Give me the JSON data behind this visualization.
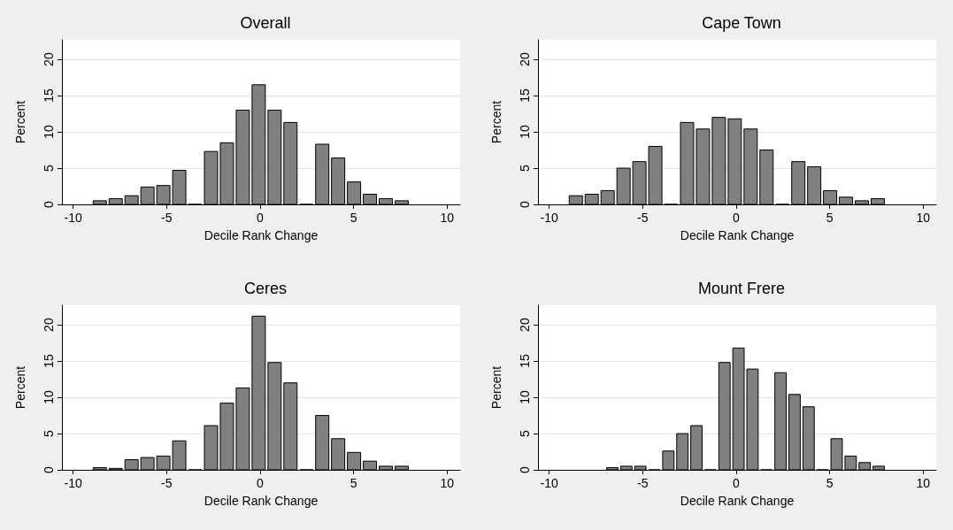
{
  "chart_data": [
    {
      "type": "histogram",
      "title": "Overall",
      "xlabel": "Decile Rank Change",
      "ylabel": "Percent",
      "color": "#808080",
      "bins": [
        -9,
        -8.15,
        -7.3,
        -6.45,
        -5.6,
        -4.75,
        -3.9,
        -3.05,
        -2.2,
        -1.35,
        -0.5,
        0.35,
        1.2,
        2.05,
        2.9,
        3.75,
        4.6,
        5.45,
        6.3,
        7.15,
        8
      ],
      "values": [
        0.5,
        0.8,
        1.2,
        2.4,
        2.6,
        4.7,
        0,
        7.3,
        8.5,
        13.0,
        16.5,
        13.0,
        11.3,
        0,
        8.3,
        6.4,
        3.1,
        1.4,
        0.8,
        0.5
      ],
      "xlim": [
        -10.6,
        10.7
      ],
      "xticks": [
        -10,
        -5,
        0,
        5,
        10
      ],
      "ylim": [
        0,
        22.7
      ],
      "yticks": [
        0,
        5,
        10,
        15,
        20
      ],
      "grid": "y"
    },
    {
      "type": "histogram",
      "title": "Cape Town",
      "xlabel": "Decile Rank Change",
      "ylabel": "Percent",
      "color": "#808080",
      "bins": [
        -9,
        -8.15,
        -7.3,
        -6.45,
        -5.6,
        -4.75,
        -3.9,
        -3.05,
        -2.2,
        -1.35,
        -0.5,
        0.35,
        1.2,
        2.05,
        2.9,
        3.75,
        4.6,
        5.45,
        6.3,
        7.15,
        8
      ],
      "values": [
        1.2,
        1.4,
        1.9,
        5.0,
        5.9,
        8.0,
        0,
        11.3,
        10.4,
        12.0,
        11.8,
        10.4,
        7.5,
        0,
        5.9,
        5.2,
        1.9,
        1.0,
        0.5,
        0.8
      ],
      "xlim": [
        -10.6,
        10.7
      ],
      "xticks": [
        -10,
        -5,
        0,
        5,
        10
      ],
      "ylim": [
        0,
        22.7
      ],
      "yticks": [
        0,
        5,
        10,
        15,
        20
      ],
      "grid": "y"
    },
    {
      "type": "histogram",
      "title": "Ceres",
      "xlabel": "Decile Rank Change",
      "ylabel": "Percent",
      "color": "#808080",
      "bins": [
        -9,
        -8.15,
        -7.3,
        -6.45,
        -5.6,
        -4.75,
        -3.9,
        -3.05,
        -2.2,
        -1.35,
        -0.5,
        0.35,
        1.2,
        2.05,
        2.9,
        3.75,
        4.6,
        5.45,
        6.3,
        7.15,
        8
      ],
      "values": [
        0.3,
        0.2,
        1.4,
        1.7,
        1.9,
        4.0,
        0,
        6.1,
        9.2,
        11.3,
        21.2,
        14.8,
        12.0,
        0,
        7.5,
        4.3,
        2.4,
        1.2,
        0.5,
        0.5
      ],
      "xlim": [
        -10.6,
        10.7
      ],
      "xticks": [
        -10,
        -5,
        0,
        5,
        10
      ],
      "ylim": [
        0,
        22.7
      ],
      "yticks": [
        0,
        5,
        10,
        15,
        20
      ],
      "grid": "y"
    },
    {
      "type": "histogram",
      "title": "Mount Frere",
      "xlabel": "Decile Rank Change",
      "ylabel": "Percent",
      "color": "#808080",
      "bins": [
        -7,
        -6.25,
        -5.5,
        -4.75,
        -4,
        -3.25,
        -2.5,
        -1.75,
        -1,
        -0.25,
        0.5,
        1.25,
        2,
        2.75,
        3.5,
        4.25,
        5,
        5.75,
        6.5,
        7.25,
        8
      ],
      "values": [
        0.3,
        0.5,
        0.5,
        0,
        2.6,
        5.0,
        6.1,
        0,
        14.8,
        16.8,
        13.9,
        0,
        13.4,
        10.4,
        8.7,
        0,
        4.3,
        1.9,
        1.0,
        0.5
      ],
      "xlim": [
        -10.6,
        10.7
      ],
      "xticks": [
        -10,
        -5,
        0,
        5,
        10
      ],
      "ylim": [
        0,
        22.7
      ],
      "yticks": [
        0,
        5,
        10,
        15,
        20
      ],
      "grid": "y"
    }
  ]
}
